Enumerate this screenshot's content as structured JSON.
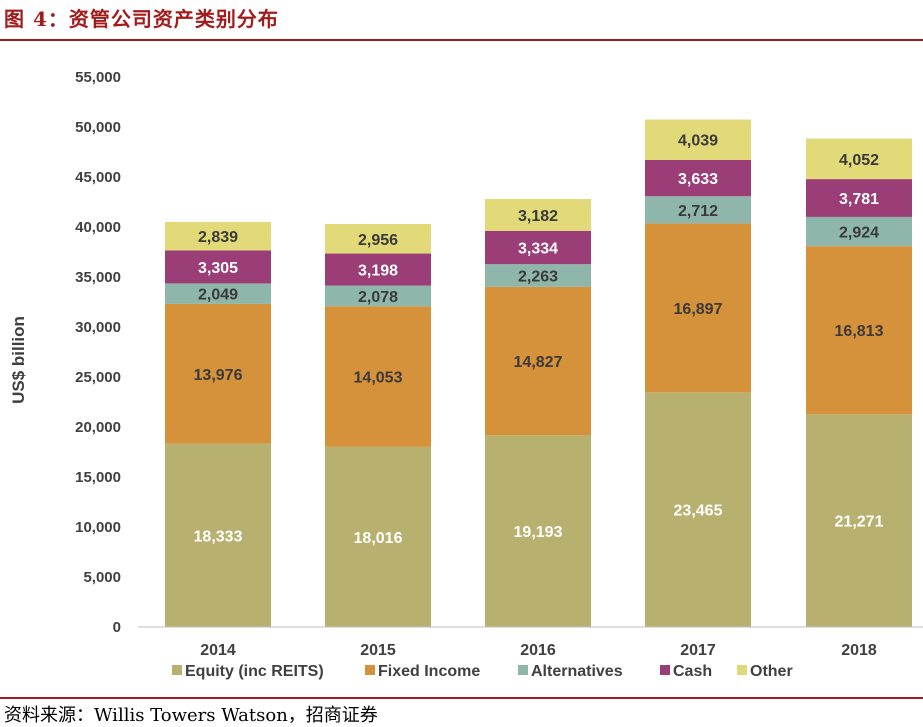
{
  "figure_title": "图 4：资管公司资产类别分布",
  "source_text": "资料来源：Willis Towers Watson，招商证券",
  "chart_data": {
    "type": "bar",
    "stacked": true,
    "title": "",
    "xlabel": "",
    "ylabel": "US$ billion",
    "ylim": [
      0,
      55000
    ],
    "yticks": [
      0,
      5000,
      10000,
      15000,
      20000,
      25000,
      30000,
      35000,
      40000,
      45000,
      50000,
      55000
    ],
    "ytick_labels": [
      "0",
      "5,000",
      "10,000",
      "15,000",
      "20,000",
      "25,000",
      "30,000",
      "35,000",
      "40,000",
      "45,000",
      "50,000",
      "55,000"
    ],
    "categories": [
      "2014",
      "2015",
      "2016",
      "2017",
      "2018"
    ],
    "legend_position": "bottom",
    "grid": false,
    "series": [
      {
        "name": "Equity (inc REITS)",
        "color": "#b8b06e",
        "label_color": "#ffffff",
        "values": [
          18333,
          18016,
          19193,
          23465,
          21271
        ],
        "labels": [
          "18,333",
          "18,016",
          "19,193",
          "23,465",
          "21,271"
        ]
      },
      {
        "name": "Fixed Income",
        "color": "#d6913b",
        "label_color": "#3a3a3a",
        "values": [
          13976,
          14053,
          14827,
          16897,
          16813
        ],
        "labels": [
          "13,976",
          "14,053",
          "14,827",
          "16,897",
          "16,813"
        ]
      },
      {
        "name": "Alternatives",
        "color": "#8fb6ab",
        "label_color": "#3a3a3a",
        "values": [
          2049,
          2078,
          2263,
          2712,
          2924
        ],
        "labels": [
          "2,049",
          "2,078",
          "2,263",
          "2,712",
          "2,924"
        ]
      },
      {
        "name": "Cash",
        "color": "#9b3d77",
        "label_color": "#ffffff",
        "values": [
          3305,
          3198,
          3334,
          3633,
          3781
        ],
        "labels": [
          "3,305",
          "3,198",
          "3,334",
          "3,633",
          "3,781"
        ]
      },
      {
        "name": "Other",
        "color": "#e2d978",
        "label_color": "#3a3a3a",
        "values": [
          2839,
          2956,
          3182,
          4039,
          4052
        ],
        "labels": [
          "2,839",
          "2,956",
          "3,182",
          "4,039",
          "4,052"
        ]
      }
    ]
  }
}
